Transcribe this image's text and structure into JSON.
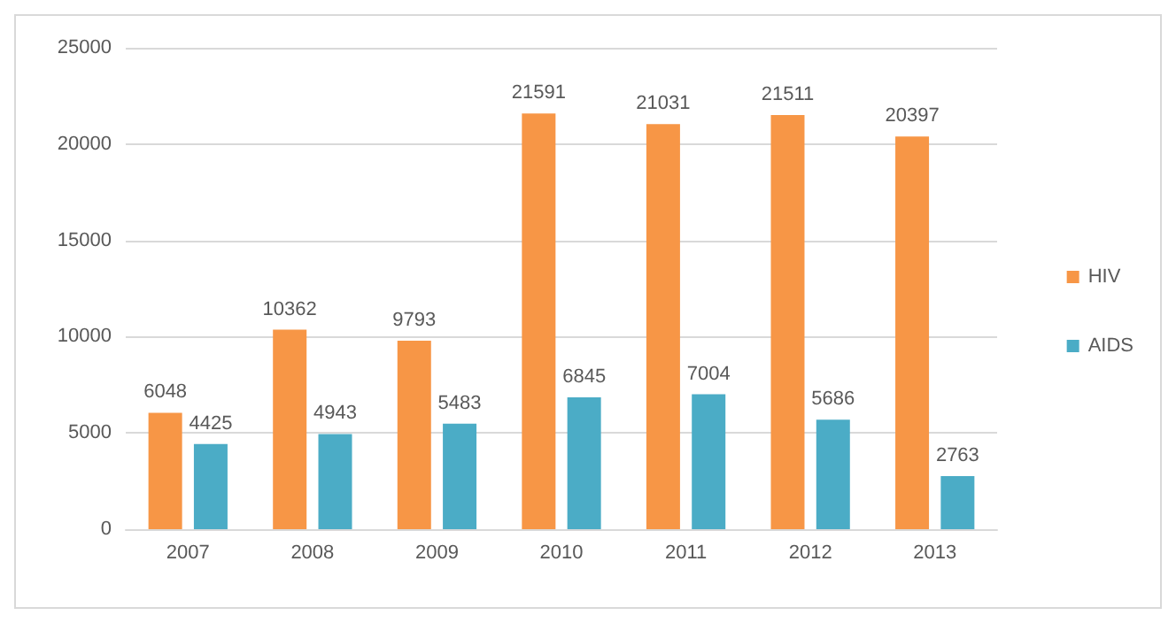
{
  "chart_data": {
    "type": "bar",
    "categories": [
      "2007",
      "2008",
      "2009",
      "2010",
      "2011",
      "2012",
      "2013"
    ],
    "series": [
      {
        "name": "HIV",
        "color": "#f79646",
        "values": [
          6048,
          10362,
          9793,
          21591,
          21031,
          21511,
          20397
        ]
      },
      {
        "name": "AIDS",
        "color": "#4bacc6",
        "values": [
          4425,
          4943,
          5483,
          6845,
          7004,
          5686,
          2763
        ]
      }
    ],
    "ylim": [
      0,
      25000
    ],
    "yticks": [
      0,
      5000,
      10000,
      15000,
      20000,
      25000
    ],
    "grid": "y",
    "legend": "right",
    "data_labels": true
  }
}
